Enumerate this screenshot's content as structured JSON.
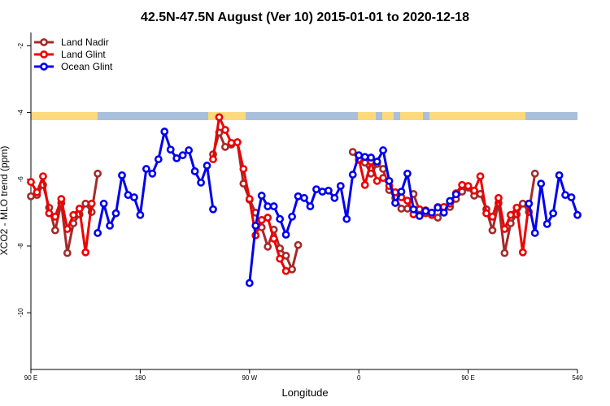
{
  "chart_data": {
    "type": "line",
    "title": "42.5N-47.5N August (Ver 10)   2015-01-01 to 2020-12-18",
    "x_label": "Longitude",
    "y_label": "XCO2 - MLO trend (ppm)",
    "legend": "topleft",
    "xlim": [
      90,
      540
    ],
    "ylim": [
      -11.7,
      -1.6
    ],
    "xticks": [
      {
        "value": 90,
        "label": "90 E"
      },
      180,
      {
        "value": 270,
        "label": "90 W"
      },
      {
        "value": 360,
        "label": "0"
      },
      {
        "value": 450,
        "label": "90 E"
      },
      540
    ],
    "yticks": [
      -2,
      -4,
      -6,
      -8,
      -10
    ],
    "x": [
      90,
      95,
      100,
      105,
      110,
      115,
      120,
      125,
      130,
      135,
      140,
      145,
      150,
      155,
      160,
      165,
      170,
      175,
      180,
      185,
      190,
      195,
      200,
      205,
      210,
      215,
      220,
      225,
      230,
      235,
      240,
      245,
      250,
      255,
      260,
      265,
      270,
      275,
      280,
      285,
      290,
      295,
      300,
      305,
      310,
      315,
      320,
      325,
      330,
      335,
      340,
      345,
      350,
      355,
      360,
      365,
      370,
      375,
      380,
      385,
      390,
      395,
      400,
      405,
      410,
      415,
      420,
      425,
      430,
      435,
      440,
      445,
      450,
      455,
      460,
      465,
      470,
      475,
      480,
      485,
      490,
      495,
      500,
      505,
      510,
      515,
      520,
      525,
      530,
      535,
      540
    ],
    "series": [
      {
        "name": "Land Nadir",
        "color": "#a52a2a",
        "values": [
          -6.51,
          -6.47,
          -6.17,
          -6.85,
          -7.53,
          -6.71,
          -8.21,
          -7.32,
          -7.05,
          -6.73,
          -6.98,
          -5.83,
          null,
          null,
          null,
          null,
          null,
          null,
          null,
          null,
          null,
          null,
          null,
          null,
          null,
          null,
          null,
          null,
          null,
          null,
          -5.25,
          -4.6,
          -5.03,
          -4.96,
          -4.89,
          -6.13,
          -6.61,
          -7.0,
          -7.44,
          -8.02,
          -7.51,
          -8.07,
          -8.29,
          -8.7,
          -7.97,
          null,
          null,
          null,
          null,
          null,
          null,
          null,
          null,
          -5.18,
          -5.42,
          -5.5,
          -5.83,
          -5.54,
          -5.69,
          -6.32,
          -6.56,
          -6.88,
          -6.88,
          -6.44,
          -6.95,
          -6.93,
          -7.02,
          -7.15,
          -6.9,
          -6.83,
          -6.59,
          -6.37,
          -6.25,
          -6.49,
          -6.44,
          -6.9,
          -7.53,
          -6.71,
          -8.21,
          -7.32,
          -7.05,
          -6.73,
          -6.98,
          -5.83,
          null,
          null,
          null,
          null,
          null,
          null,
          null
        ]
      },
      {
        "name": "Land Glint",
        "color": "#ee0000",
        "values": [
          -6.08,
          -6.39,
          -5.91,
          -7.02,
          -7.12,
          -6.59,
          -7.49,
          -7.07,
          -6.88,
          -8.19,
          -6.73,
          null,
          null,
          null,
          null,
          null,
          null,
          null,
          null,
          null,
          null,
          null,
          null,
          null,
          null,
          null,
          null,
          null,
          null,
          null,
          -5.4,
          -4.14,
          -4.52,
          -4.91,
          -4.89,
          -5.69,
          -6.59,
          -7.68,
          -7.22,
          -7.15,
          -7.78,
          -8.38,
          -8.75,
          null,
          null,
          null,
          null,
          null,
          null,
          null,
          null,
          null,
          null,
          null,
          -5.4,
          -6.17,
          -5.47,
          -6.05,
          -5.96,
          -6.2,
          -6.39,
          -6.54,
          -6.64,
          -7.05,
          -6.9,
          -7.02,
          -7.07,
          -6.83,
          -6.83,
          -6.73,
          -6.42,
          -6.17,
          -6.2,
          -6.34,
          -5.91,
          -7.02,
          -7.12,
          -6.56,
          -7.49,
          -7.07,
          -6.85,
          -8.19,
          -6.73,
          null,
          null,
          null,
          null,
          null,
          null,
          null,
          null
        ]
      },
      {
        "name": "Ocean Glint",
        "color": "#0000ee",
        "values": [
          null,
          null,
          null,
          null,
          null,
          null,
          null,
          null,
          null,
          null,
          null,
          -7.61,
          -6.73,
          -7.39,
          -7.02,
          -5.88,
          -6.47,
          -6.54,
          -7.07,
          -5.69,
          -5.83,
          -5.4,
          -4.57,
          -5.11,
          -5.37,
          -5.28,
          -5.13,
          -5.76,
          -6.1,
          -5.59,
          -6.9,
          null,
          null,
          null,
          null,
          null,
          -9.11,
          -7.39,
          -6.49,
          -6.81,
          -6.81,
          -7.19,
          -7.66,
          -7.12,
          -6.51,
          -6.56,
          -6.81,
          -6.3,
          -6.37,
          -6.34,
          -6.56,
          -6.2,
          -7.19,
          -5.86,
          -5.28,
          -5.33,
          -5.35,
          -5.47,
          -5.13,
          -6.05,
          -6.71,
          -6.37,
          -5.83,
          -6.9,
          -7.1,
          -6.95,
          -7.0,
          -6.85,
          -7.0,
          -6.65,
          -6.45,
          null,
          null,
          null,
          null,
          null,
          null,
          null,
          null,
          null,
          null,
          null,
          -6.73,
          -7.61,
          -6.13,
          -7.34,
          -7.02,
          -5.88,
          -6.47,
          -6.54,
          -7.07
        ]
      }
    ]
  }
}
